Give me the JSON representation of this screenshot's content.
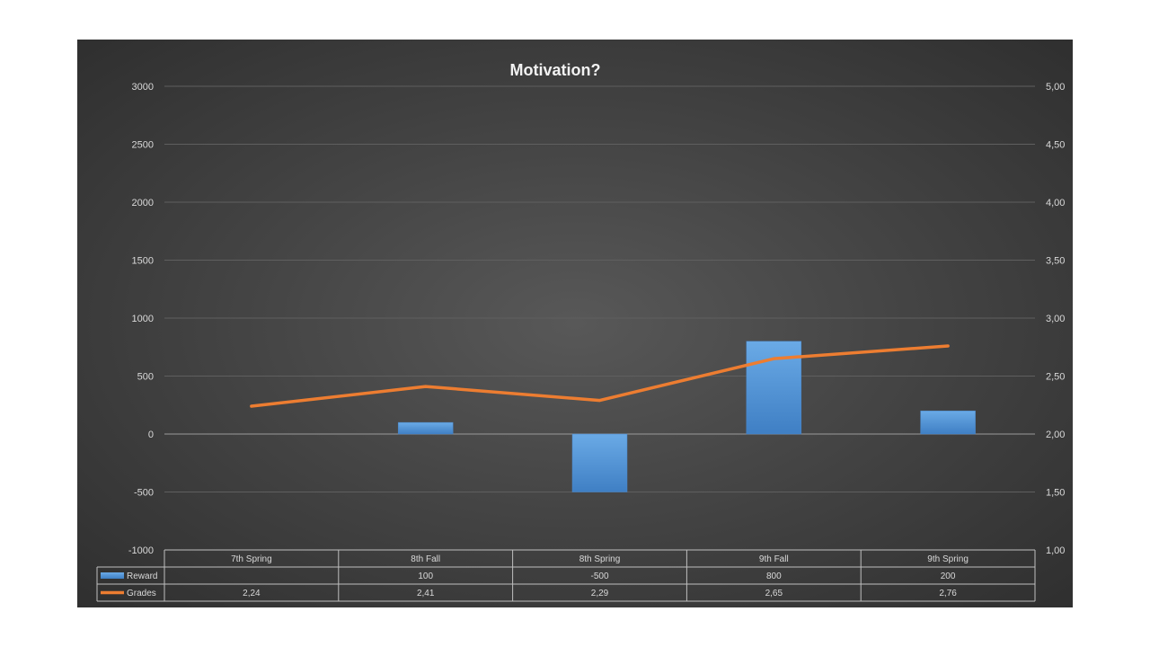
{
  "chart_data": {
    "type": "bar",
    "title": "Motivation?",
    "categories": [
      "7th Spring",
      "8th Fall",
      "8th Spring",
      "9th Fall",
      "9th Spring"
    ],
    "y_left": {
      "min": -1000,
      "max": 3000,
      "step": 500,
      "ticks": [
        "3000",
        "2500",
        "2000",
        "1500",
        "1000",
        "500",
        "0",
        "-500",
        "-1000"
      ]
    },
    "y_right": {
      "min": 1.0,
      "max": 5.0,
      "step": 0.5,
      "ticks": [
        "5,00",
        "4,50",
        "4,00",
        "3,50",
        "3,00",
        "2,50",
        "2,00",
        "1,50",
        "1,00"
      ]
    },
    "grid": true,
    "legend": "data-table",
    "series": [
      {
        "name": "Reward",
        "type": "bar",
        "axis": "left",
        "color": "#5b9bd5",
        "values": [
          null,
          100,
          -500,
          800,
          200
        ],
        "labels": [
          "",
          "100",
          "-500",
          "800",
          "200"
        ]
      },
      {
        "name": "Grades",
        "type": "line",
        "axis": "right",
        "color": "#ed7d31",
        "values": [
          2.24,
          2.41,
          2.29,
          2.65,
          2.76
        ],
        "labels": [
          "2,24",
          "2,41",
          "2,29",
          "2,65",
          "2,76"
        ]
      }
    ]
  }
}
